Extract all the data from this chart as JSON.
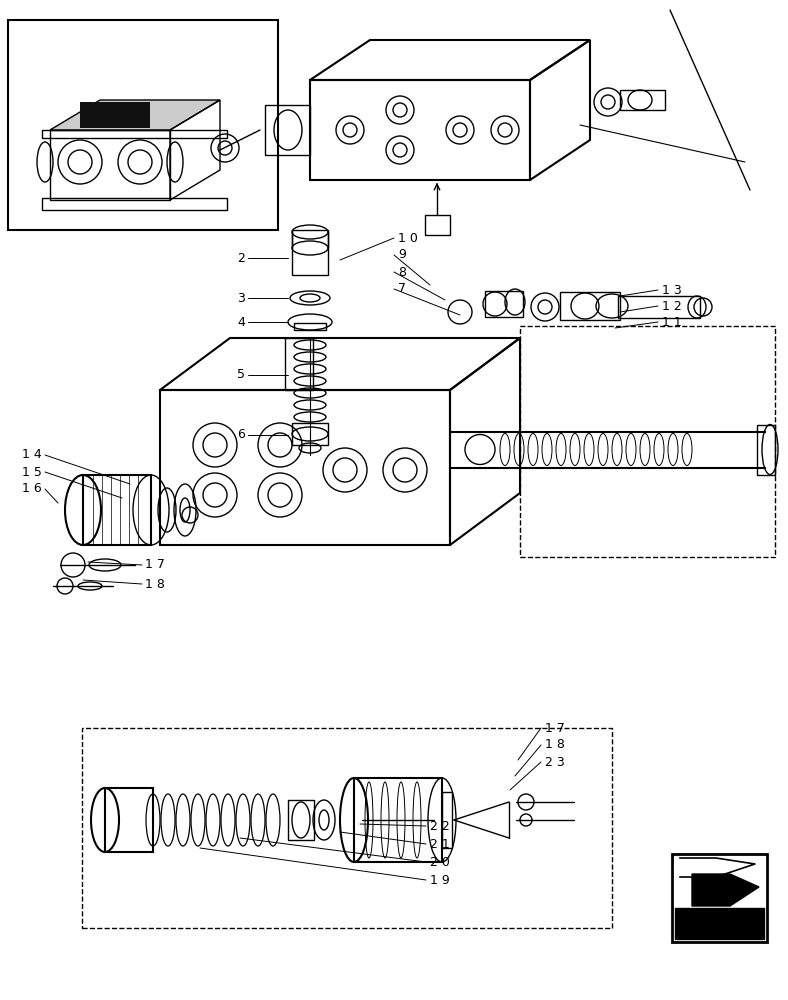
{
  "bg_color": "#ffffff",
  "line_color": "#000000",
  "fig_width": 7.88,
  "fig_height": 10.0
}
